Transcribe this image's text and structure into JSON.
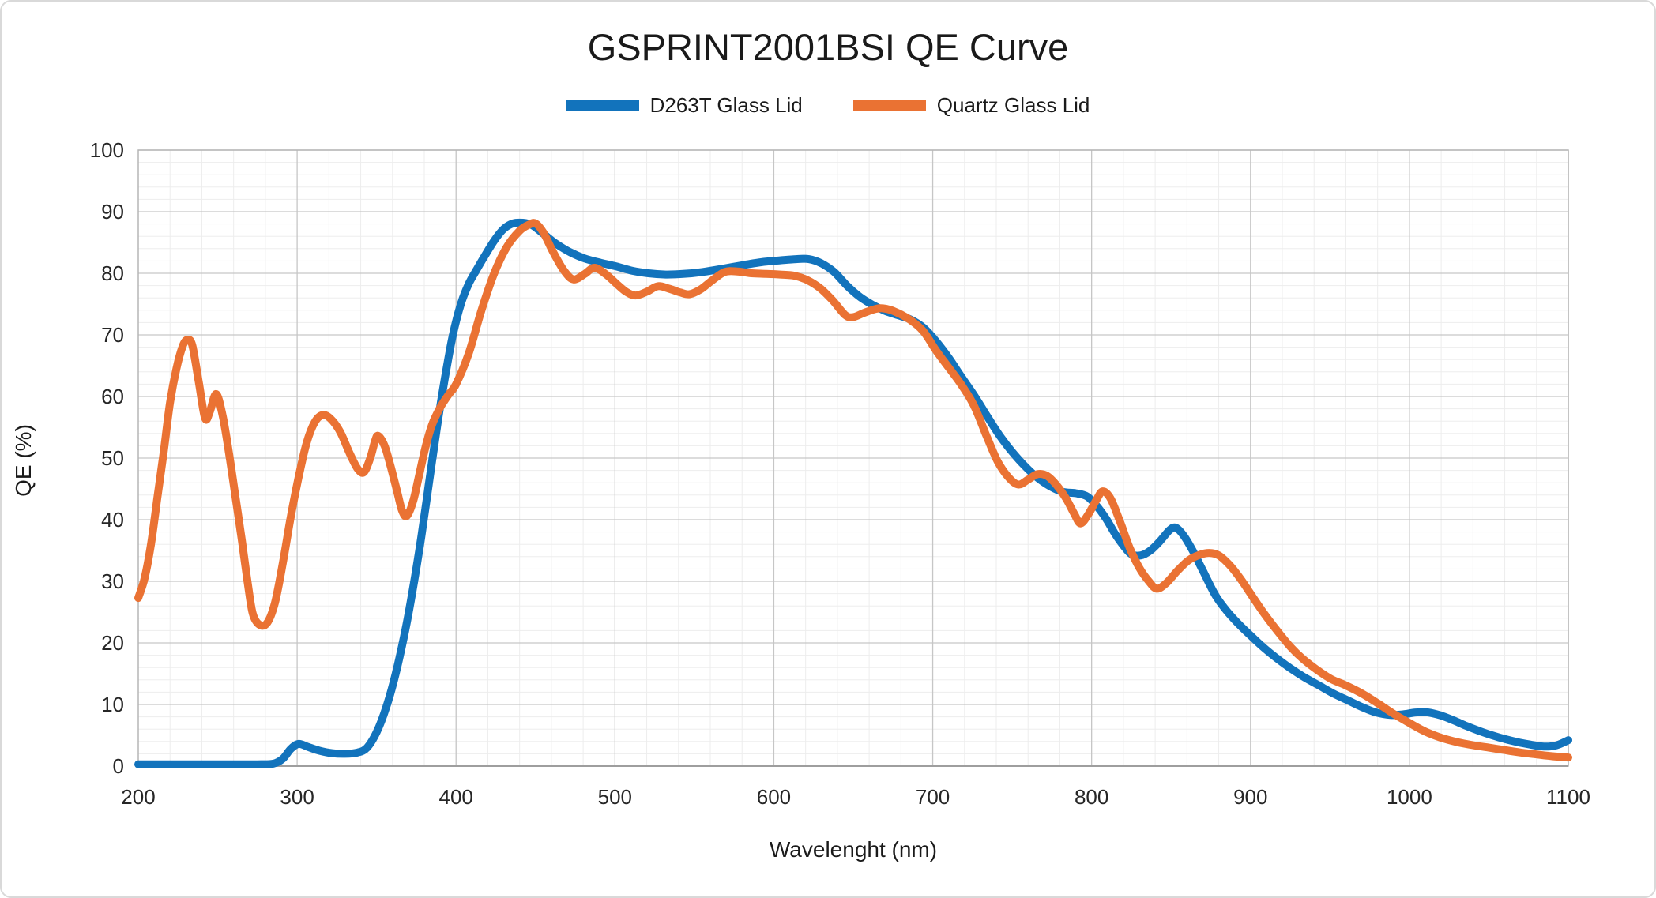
{
  "chart_data": {
    "type": "line",
    "title": "GSPRINT2001BSI QE Curve",
    "xlabel": "Wavelenght (nm)",
    "ylabel": "QE (%)",
    "xlim": [
      200,
      1100
    ],
    "ylim": [
      0,
      100
    ],
    "xticks": [
      200,
      300,
      400,
      500,
      600,
      700,
      800,
      900,
      1000,
      1100
    ],
    "yticks": [
      0,
      10,
      20,
      30,
      40,
      50,
      60,
      70,
      80,
      90,
      100
    ],
    "x_minor_step": 20,
    "y_minor_step": 2,
    "grid": true,
    "legend_position": "top-center",
    "series": [
      {
        "name": "D263T Glass Lid",
        "color": "#1273BC",
        "points": [
          [
            200,
            0.3
          ],
          [
            220,
            0.3
          ],
          [
            240,
            0.3
          ],
          [
            260,
            0.3
          ],
          [
            275,
            0.3
          ],
          [
            285,
            0.4
          ],
          [
            291,
            1.2
          ],
          [
            296,
            2.8
          ],
          [
            301,
            3.6
          ],
          [
            307,
            3.1
          ],
          [
            314,
            2.5
          ],
          [
            322,
            2.1
          ],
          [
            330,
            2.0
          ],
          [
            338,
            2.2
          ],
          [
            344,
            3.0
          ],
          [
            350,
            5.5
          ],
          [
            356,
            9.5
          ],
          [
            362,
            15
          ],
          [
            368,
            22
          ],
          [
            373,
            29
          ],
          [
            378,
            37
          ],
          [
            383,
            46
          ],
          [
            388,
            55
          ],
          [
            393,
            63
          ],
          [
            398,
            70
          ],
          [
            403,
            75
          ],
          [
            408,
            78.3
          ],
          [
            413,
            80.6
          ],
          [
            418,
            82.8
          ],
          [
            424,
            85.3
          ],
          [
            430,
            87.2
          ],
          [
            436,
            88.1
          ],
          [
            442,
            88.2
          ],
          [
            448,
            87.8
          ],
          [
            455,
            86.4
          ],
          [
            463,
            84.8
          ],
          [
            472,
            83.4
          ],
          [
            481,
            82.4
          ],
          [
            491,
            81.7
          ],
          [
            501,
            81.1
          ],
          [
            511,
            80.4
          ],
          [
            521,
            80.0
          ],
          [
            532,
            79.8
          ],
          [
            543,
            79.9
          ],
          [
            555,
            80.2
          ],
          [
            567,
            80.7
          ],
          [
            580,
            81.3
          ],
          [
            592,
            81.8
          ],
          [
            604,
            82.1
          ],
          [
            614,
            82.3
          ],
          [
            622,
            82.3
          ],
          [
            630,
            81.6
          ],
          [
            638,
            80.2
          ],
          [
            646,
            78.0
          ],
          [
            654,
            76.2
          ],
          [
            662,
            74.9
          ],
          [
            670,
            73.9
          ],
          [
            678,
            73.2
          ],
          [
            686,
            72.5
          ],
          [
            694,
            71.2
          ],
          [
            702,
            69.0
          ],
          [
            710,
            66.3
          ],
          [
            718,
            63.2
          ],
          [
            726,
            60.2
          ],
          [
            734,
            56.9
          ],
          [
            742,
            53.7
          ],
          [
            750,
            51.0
          ],
          [
            758,
            48.7
          ],
          [
            766,
            46.8
          ],
          [
            774,
            45.4
          ],
          [
            782,
            44.5
          ],
          [
            790,
            44.3
          ],
          [
            797,
            43.8
          ],
          [
            803,
            42.3
          ],
          [
            809,
            40.2
          ],
          [
            815,
            37.6
          ],
          [
            820,
            35.8
          ],
          [
            825,
            34.4
          ],
          [
            831,
            34.2
          ],
          [
            837,
            35.0
          ],
          [
            843,
            36.5
          ],
          [
            849,
            38.3
          ],
          [
            853,
            38.7
          ],
          [
            858,
            37.4
          ],
          [
            864,
            34.8
          ],
          [
            871,
            31.2
          ],
          [
            878,
            27.7
          ],
          [
            885,
            25.2
          ],
          [
            892,
            23.2
          ],
          [
            900,
            21.2
          ],
          [
            908,
            19.3
          ],
          [
            916,
            17.6
          ],
          [
            925,
            15.9
          ],
          [
            934,
            14.4
          ],
          [
            943,
            13.1
          ],
          [
            952,
            11.8
          ],
          [
            961,
            10.7
          ],
          [
            970,
            9.6
          ],
          [
            979,
            8.7
          ],
          [
            988,
            8.3
          ],
          [
            996,
            8.4
          ],
          [
            1004,
            8.7
          ],
          [
            1012,
            8.7
          ],
          [
            1020,
            8.2
          ],
          [
            1028,
            7.4
          ],
          [
            1036,
            6.5
          ],
          [
            1044,
            5.7
          ],
          [
            1052,
            5.0
          ],
          [
            1060,
            4.4
          ],
          [
            1068,
            3.9
          ],
          [
            1076,
            3.5
          ],
          [
            1083,
            3.2
          ],
          [
            1089,
            3.2
          ],
          [
            1094,
            3.5
          ],
          [
            1100,
            4.2
          ]
        ]
      },
      {
        "name": "Quartz Glass Lid",
        "color": "#EA7233",
        "points": [
          [
            200,
            27.3
          ],
          [
            204,
            30.5
          ],
          [
            208,
            36
          ],
          [
            212,
            43.5
          ],
          [
            216,
            51
          ],
          [
            220,
            59
          ],
          [
            224,
            64.5
          ],
          [
            228,
            68.2
          ],
          [
            231,
            69.2
          ],
          [
            234,
            68.3
          ],
          [
            238,
            62.5
          ],
          [
            242,
            56.5
          ],
          [
            245,
            57.5
          ],
          [
            249,
            60.4
          ],
          [
            253,
            57
          ],
          [
            257,
            51
          ],
          [
            261,
            44
          ],
          [
            265,
            37
          ],
          [
            269,
            29.5
          ],
          [
            272,
            24.8
          ],
          [
            276,
            23.0
          ],
          [
            281,
            23.2
          ],
          [
            286,
            26.5
          ],
          [
            291,
            33
          ],
          [
            296,
            40.5
          ],
          [
            301,
            47
          ],
          [
            306,
            52.5
          ],
          [
            311,
            55.8
          ],
          [
            316,
            57.0
          ],
          [
            321,
            56.4
          ],
          [
            327,
            54.3
          ],
          [
            333,
            50.8
          ],
          [
            338,
            48.3
          ],
          [
            342,
            47.7
          ],
          [
            346,
            50
          ],
          [
            349,
            52.8
          ],
          [
            351,
            53.6
          ],
          [
            355,
            52
          ],
          [
            359,
            48.5
          ],
          [
            363,
            44.5
          ],
          [
            366,
            41.5
          ],
          [
            369,
            40.6
          ],
          [
            373,
            43
          ],
          [
            377,
            47.5
          ],
          [
            381,
            52
          ],
          [
            385,
            55.5
          ],
          [
            390,
            58.2
          ],
          [
            395,
            60.2
          ],
          [
            400,
            62
          ],
          [
            408,
            67
          ],
          [
            416,
            74
          ],
          [
            424,
            80
          ],
          [
            432,
            84.3
          ],
          [
            440,
            86.9
          ],
          [
            446,
            87.9
          ],
          [
            450,
            88.1
          ],
          [
            455,
            86.6
          ],
          [
            461,
            83.5
          ],
          [
            468,
            80.4
          ],
          [
            474,
            79.0
          ],
          [
            481,
            79.9
          ],
          [
            487,
            80.9
          ],
          [
            494,
            79.9
          ],
          [
            501,
            78.3
          ],
          [
            507,
            77.0
          ],
          [
            513,
            76.4
          ],
          [
            520,
            77.0
          ],
          [
            527,
            77.9
          ],
          [
            534,
            77.5
          ],
          [
            541,
            76.9
          ],
          [
            547,
            76.6
          ],
          [
            554,
            77.4
          ],
          [
            561,
            78.8
          ],
          [
            569,
            80.2
          ],
          [
            577,
            80.3
          ],
          [
            586,
            80.0
          ],
          [
            595,
            79.9
          ],
          [
            604,
            79.8
          ],
          [
            613,
            79.6
          ],
          [
            621,
            78.9
          ],
          [
            629,
            77.6
          ],
          [
            637,
            75.6
          ],
          [
            645,
            73.2
          ],
          [
            650,
            72.9
          ],
          [
            657,
            73.6
          ],
          [
            664,
            74.2
          ],
          [
            669,
            74.3
          ],
          [
            676,
            73.8
          ],
          [
            686,
            72.4
          ],
          [
            694,
            70.6
          ],
          [
            702,
            67.5
          ],
          [
            710,
            64.7
          ],
          [
            718,
            61.9
          ],
          [
            726,
            58.5
          ],
          [
            734,
            53.5
          ],
          [
            741,
            49.4
          ],
          [
            748,
            46.8
          ],
          [
            754,
            45.7
          ],
          [
            760,
            46.5
          ],
          [
            766,
            47.4
          ],
          [
            772,
            47.1
          ],
          [
            778,
            45.6
          ],
          [
            784,
            43.4
          ],
          [
            789,
            41.0
          ],
          [
            793,
            39.4
          ],
          [
            798,
            40.9
          ],
          [
            803,
            43.2
          ],
          [
            807,
            44.6
          ],
          [
            812,
            43.4
          ],
          [
            818,
            39.6
          ],
          [
            824,
            35.4
          ],
          [
            830,
            32.2
          ],
          [
            836,
            30.0
          ],
          [
            841,
            28.8
          ],
          [
            847,
            29.7
          ],
          [
            854,
            31.7
          ],
          [
            861,
            33.4
          ],
          [
            868,
            34.3
          ],
          [
            874,
            34.6
          ],
          [
            880,
            34.2
          ],
          [
            887,
            32.6
          ],
          [
            894,
            30.3
          ],
          [
            901,
            27.6
          ],
          [
            909,
            24.6
          ],
          [
            917,
            21.9
          ],
          [
            925,
            19.4
          ],
          [
            933,
            17.4
          ],
          [
            942,
            15.6
          ],
          [
            951,
            14.1
          ],
          [
            960,
            13.1
          ],
          [
            970,
            11.8
          ],
          [
            980,
            10.2
          ],
          [
            990,
            8.5
          ],
          [
            1000,
            7.0
          ],
          [
            1010,
            5.6
          ],
          [
            1020,
            4.6
          ],
          [
            1030,
            3.9
          ],
          [
            1040,
            3.4
          ],
          [
            1050,
            3.0
          ],
          [
            1060,
            2.6
          ],
          [
            1070,
            2.2
          ],
          [
            1080,
            1.9
          ],
          [
            1090,
            1.6
          ],
          [
            1100,
            1.4
          ]
        ]
      }
    ],
    "style": {
      "minor_grid_color": "#ededed",
      "major_grid_color": "#c6c6c6",
      "plot_border_color": "#b5b5b5",
      "axis_line_color": "#9e9e9e",
      "line_width": 10
    }
  }
}
